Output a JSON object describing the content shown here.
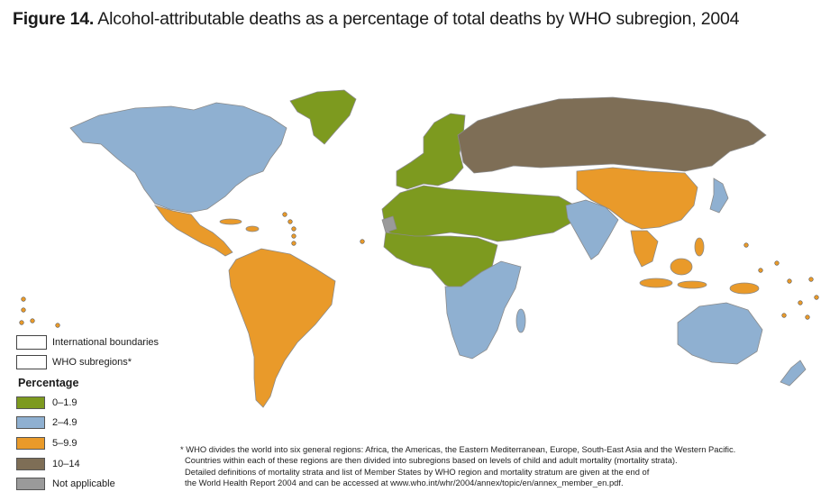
{
  "title": {
    "figure_label": "Figure 14.",
    "text": "Alcohol-attributable deaths as a percentage of total deaths by WHO subregion, 2004"
  },
  "legend": {
    "boundary_items": [
      "International boundaries",
      "WHO subregions*"
    ],
    "heading": "Percentage",
    "categories": [
      {
        "label": "0–1.9",
        "color": "#7d9a1f"
      },
      {
        "label": "2–4.9",
        "color": "#8fb0d1"
      },
      {
        "label": "5–9.9",
        "color": "#e99a2a"
      },
      {
        "label": "10–14",
        "color": "#7e6e56"
      },
      {
        "label": "Not applicable",
        "color": "#9a9a9a"
      }
    ]
  },
  "footnote": {
    "lines": [
      "* WHO divides the world into six general regions: Africa, the Americas, the Eastern Mediterranean, Europe, South-East Asia and the Western Pacific.",
      "Countries within each of these regions are then divided into subregions based on levels of child and adult mortality (mortality strata).",
      "Detailed definitions of mortality strata and list of Member States by WHO region and mortality stratum are given at the end of",
      "the World Health Report 2004 and can be accessed at www.who.int/whr/2004/annex/topic/en/annex_member_en.pdf."
    ]
  },
  "map_regions": [
    {
      "name": "North America",
      "category": "2–4.9"
    },
    {
      "name": "Greenland",
      "category": "0–1.9"
    },
    {
      "name": "Mexico and Central America",
      "category": "5–9.9"
    },
    {
      "name": "South America",
      "category": "5–9.9"
    },
    {
      "name": "Western Europe",
      "category": "0–1.9"
    },
    {
      "name": "Russia and Eastern Europe",
      "category": "10–14"
    },
    {
      "name": "North Africa and Middle East",
      "category": "0–1.9"
    },
    {
      "name": "Central and West Africa",
      "category": "0–1.9"
    },
    {
      "name": "Southern and East Africa",
      "category": "2–4.9"
    },
    {
      "name": "South Asia",
      "category": "2–4.9"
    },
    {
      "name": "China",
      "category": "5–9.9"
    },
    {
      "name": "Japan",
      "category": "2–4.9"
    },
    {
      "name": "Southeast Asia",
      "category": "5–9.9"
    },
    {
      "name": "Australia and New Zealand",
      "category": "2–4.9"
    },
    {
      "name": "Western Sahara",
      "category": "Not applicable"
    }
  ]
}
